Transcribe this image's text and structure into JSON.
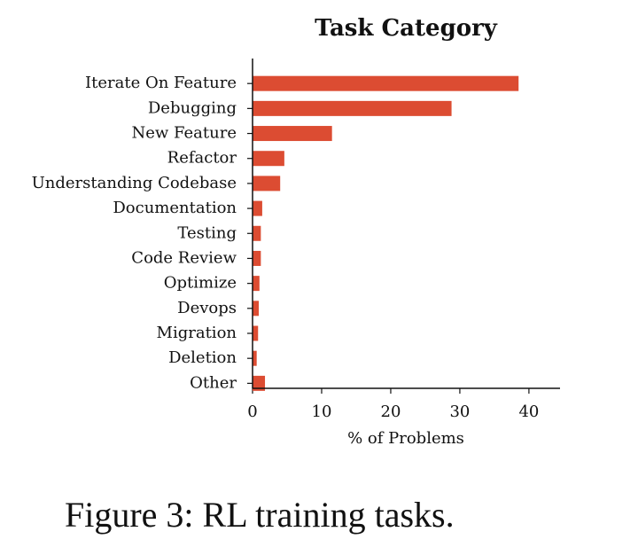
{
  "chart_data": {
    "type": "barh",
    "title": "Task Category",
    "categories": [
      "Iterate On Feature",
      "Debugging",
      "New Feature",
      "Refactor",
      "Understanding Codebase",
      "Documentation",
      "Testing",
      "Code Review",
      "Optimize",
      "Devops",
      "Migration",
      "Deletion",
      "Other"
    ],
    "values": [
      38.5,
      28.8,
      11.5,
      4.6,
      4.0,
      1.4,
      1.2,
      1.2,
      1.0,
      0.9,
      0.8,
      0.6,
      1.8
    ],
    "color": "#dc4c32",
    "xlabel": "% of Problems",
    "xlim": [
      0,
      44.5
    ],
    "xticks": [
      0,
      10,
      20,
      30,
      40
    ]
  },
  "caption": "Figure 3: RL training tasks."
}
